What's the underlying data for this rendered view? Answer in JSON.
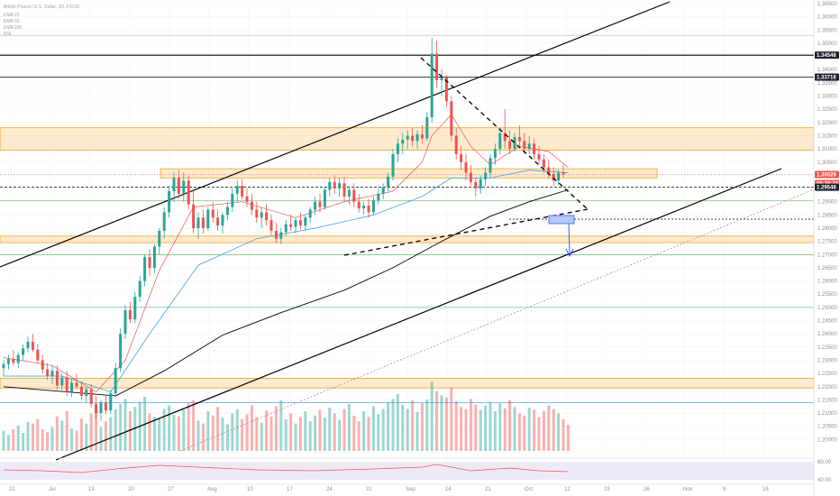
{
  "chart_data": {
    "type": "candlestick",
    "symbol_header": "British Pound / U.S. Dollar, 1D, FXCM",
    "indicator_labels": [
      "EMA 20",
      "EMA 50",
      "EMA 200",
      "RSI"
    ],
    "y_axis": {
      "min": 1.195,
      "max": 1.365,
      "tick_step": 0.005,
      "tick_decimals": 5
    },
    "price_labels": [
      {
        "value": 1.34548,
        "text": "1.34548",
        "bg": "#1e222d",
        "fg": "#ffffff",
        "line": "#000000",
        "line_style": "solid",
        "line_width": 1.2
      },
      {
        "value": 1.33718,
        "text": "1.33718",
        "bg": "#1e222d",
        "fg": "#ffffff",
        "line": "#000000",
        "line_style": "solid",
        "line_width": 0.8
      },
      {
        "value": 1.30029,
        "text": "1.30029",
        "bg": "#ef5350",
        "fg": "#ffffff",
        "line": "#ef5350",
        "line_style": "dotted",
        "line_width": 0.6
      },
      {
        "value": 1.2969,
        "text": "05:38:32",
        "bg": "#ef5350",
        "fg": "#ffffff",
        "line": "",
        "line_style": "none",
        "line_width": 0
      },
      {
        "value": 1.29548,
        "text": "1.29548",
        "bg": "#1e222d",
        "fg": "#ffffff",
        "line": "#000000",
        "line_style": "dashed",
        "line_width": 0.8
      }
    ],
    "x_axis_labels": [
      "21",
      "Jul",
      "13",
      "20",
      "27",
      "Aug",
      "10",
      "17",
      "24",
      "31",
      "Sep",
      "14",
      "21",
      "Oct",
      "12",
      "19",
      "26",
      "Nov",
      "9",
      "16"
    ],
    "rsi_y_labels": [
      "60.00",
      "40.00"
    ],
    "zones": [
      {
        "low": 1.3095,
        "high": 1.318
      },
      {
        "low": 1.299,
        "high": 1.3025
      },
      {
        "low": 1.2745,
        "high": 1.277
      },
      {
        "low": 1.2195,
        "high": 1.2232
      }
    ],
    "colors": {
      "up": "#26a69a",
      "down": "#ef5350",
      "zone_fill": "#fbd9a8",
      "zone_border": "#f5a623",
      "ema20": "#ef5350",
      "ema50": "#2196f3",
      "ema200": "#000000",
      "rsi": "#ef5350",
      "rsi_band": "#e6e1f5",
      "projection": "#2962ff",
      "hline_green": "#4caf50",
      "hline_teal": "#26a69a",
      "hline_blue": "#2196f3"
    },
    "candles": [
      {
        "o": 1.227,
        "h": 1.23,
        "l": 1.224,
        "c": 1.2285
      },
      {
        "o": 1.2285,
        "h": 1.232,
        "l": 1.2265,
        "c": 1.2305
      },
      {
        "o": 1.2305,
        "h": 1.234,
        "l": 1.228,
        "c": 1.229
      },
      {
        "o": 1.229,
        "h": 1.233,
        "l": 1.227,
        "c": 1.232
      },
      {
        "o": 1.232,
        "h": 1.236,
        "l": 1.23,
        "c": 1.2345
      },
      {
        "o": 1.2345,
        "h": 1.239,
        "l": 1.233,
        "c": 1.237
      },
      {
        "o": 1.237,
        "h": 1.24,
        "l": 1.233,
        "c": 1.234
      },
      {
        "o": 1.234,
        "h": 1.236,
        "l": 1.229,
        "c": 1.23
      },
      {
        "o": 1.23,
        "h": 1.232,
        "l": 1.225,
        "c": 1.2265
      },
      {
        "o": 1.2265,
        "h": 1.229,
        "l": 1.2225,
        "c": 1.224
      },
      {
        "o": 1.224,
        "h": 1.228,
        "l": 1.221,
        "c": 1.226
      },
      {
        "o": 1.226,
        "h": 1.228,
        "l": 1.219,
        "c": 1.2205
      },
      {
        "o": 1.2205,
        "h": 1.225,
        "l": 1.2185,
        "c": 1.2235
      },
      {
        "o": 1.2235,
        "h": 1.226,
        "l": 1.2165,
        "c": 1.218
      },
      {
        "o": 1.218,
        "h": 1.223,
        "l": 1.216,
        "c": 1.2215
      },
      {
        "o": 1.2215,
        "h": 1.225,
        "l": 1.219,
        "c": 1.22
      },
      {
        "o": 1.22,
        "h": 1.222,
        "l": 1.215,
        "c": 1.2165
      },
      {
        "o": 1.2165,
        "h": 1.22,
        "l": 1.214,
        "c": 1.219
      },
      {
        "o": 1.219,
        "h": 1.221,
        "l": 1.212,
        "c": 1.2135
      },
      {
        "o": 1.2135,
        "h": 1.2165,
        "l": 1.208,
        "c": 1.21
      },
      {
        "o": 1.21,
        "h": 1.215,
        "l": 1.207,
        "c": 1.214
      },
      {
        "o": 1.214,
        "h": 1.217,
        "l": 1.2095,
        "c": 1.211
      },
      {
        "o": 1.211,
        "h": 1.219,
        "l": 1.2095,
        "c": 1.2175
      },
      {
        "o": 1.2175,
        "h": 1.229,
        "l": 1.216,
        "c": 1.227
      },
      {
        "o": 1.227,
        "h": 1.242,
        "l": 1.2255,
        "c": 1.24
      },
      {
        "o": 1.24,
        "h": 1.251,
        "l": 1.238,
        "c": 1.249
      },
      {
        "o": 1.249,
        "h": 1.252,
        "l": 1.244,
        "c": 1.2455
      },
      {
        "o": 1.2455,
        "h": 1.256,
        "l": 1.244,
        "c": 1.254
      },
      {
        "o": 1.254,
        "h": 1.262,
        "l": 1.252,
        "c": 1.26
      },
      {
        "o": 1.26,
        "h": 1.27,
        "l": 1.258,
        "c": 1.269
      },
      {
        "o": 1.269,
        "h": 1.272,
        "l": 1.262,
        "c": 1.265
      },
      {
        "o": 1.265,
        "h": 1.274,
        "l": 1.263,
        "c": 1.273
      },
      {
        "o": 1.273,
        "h": 1.28,
        "l": 1.27,
        "c": 1.279
      },
      {
        "o": 1.279,
        "h": 1.288,
        "l": 1.276,
        "c": 1.286
      },
      {
        "o": 1.286,
        "h": 1.296,
        "l": 1.284,
        "c": 1.294
      },
      {
        "o": 1.294,
        "h": 1.301,
        "l": 1.29,
        "c": 1.299
      },
      {
        "o": 1.299,
        "h": 1.302,
        "l": 1.291,
        "c": 1.293
      },
      {
        "o": 1.293,
        "h": 1.301,
        "l": 1.29,
        "c": 1.298
      },
      {
        "o": 1.298,
        "h": 1.3,
        "l": 1.287,
        "c": 1.289
      },
      {
        "o": 1.289,
        "h": 1.294,
        "l": 1.278,
        "c": 1.28
      },
      {
        "o": 1.28,
        "h": 1.286,
        "l": 1.276,
        "c": 1.284
      },
      {
        "o": 1.284,
        "h": 1.287,
        "l": 1.278,
        "c": 1.28
      },
      {
        "o": 1.28,
        "h": 1.288,
        "l": 1.279,
        "c": 1.287
      },
      {
        "o": 1.287,
        "h": 1.29,
        "l": 1.282,
        "c": 1.284
      },
      {
        "o": 1.284,
        "h": 1.287,
        "l": 1.279,
        "c": 1.281
      },
      {
        "o": 1.281,
        "h": 1.286,
        "l": 1.278,
        "c": 1.285
      },
      {
        "o": 1.285,
        "h": 1.29,
        "l": 1.283,
        "c": 1.288
      },
      {
        "o": 1.288,
        "h": 1.295,
        "l": 1.286,
        "c": 1.293
      },
      {
        "o": 1.293,
        "h": 1.298,
        "l": 1.29,
        "c": 1.296
      },
      {
        "o": 1.296,
        "h": 1.2985,
        "l": 1.291,
        "c": 1.292
      },
      {
        "o": 1.292,
        "h": 1.295,
        "l": 1.288,
        "c": 1.29
      },
      {
        "o": 1.29,
        "h": 1.293,
        "l": 1.285,
        "c": 1.287
      },
      {
        "o": 1.287,
        "h": 1.29,
        "l": 1.282,
        "c": 1.284
      },
      {
        "o": 1.284,
        "h": 1.288,
        "l": 1.28,
        "c": 1.286
      },
      {
        "o": 1.286,
        "h": 1.289,
        "l": 1.281,
        "c": 1.283
      },
      {
        "o": 1.283,
        "h": 1.285,
        "l": 1.277,
        "c": 1.279
      },
      {
        "o": 1.279,
        "h": 1.282,
        "l": 1.2745,
        "c": 1.276
      },
      {
        "o": 1.276,
        "h": 1.28,
        "l": 1.274,
        "c": 1.2785
      },
      {
        "o": 1.2785,
        "h": 1.283,
        "l": 1.277,
        "c": 1.2815
      },
      {
        "o": 1.2815,
        "h": 1.285,
        "l": 1.279,
        "c": 1.2805
      },
      {
        "o": 1.2805,
        "h": 1.284,
        "l": 1.278,
        "c": 1.283
      },
      {
        "o": 1.283,
        "h": 1.286,
        "l": 1.2795,
        "c": 1.281
      },
      {
        "o": 1.281,
        "h": 1.285,
        "l": 1.279,
        "c": 1.284
      },
      {
        "o": 1.284,
        "h": 1.288,
        "l": 1.282,
        "c": 1.287
      },
      {
        "o": 1.287,
        "h": 1.292,
        "l": 1.285,
        "c": 1.29
      },
      {
        "o": 1.29,
        "h": 1.293,
        "l": 1.286,
        "c": 1.288
      },
      {
        "o": 1.288,
        "h": 1.296,
        "l": 1.287,
        "c": 1.2945
      },
      {
        "o": 1.2945,
        "h": 1.299,
        "l": 1.292,
        "c": 1.2975
      },
      {
        "o": 1.2975,
        "h": 1.3,
        "l": 1.293,
        "c": 1.295
      },
      {
        "o": 1.295,
        "h": 1.299,
        "l": 1.292,
        "c": 1.297
      },
      {
        "o": 1.297,
        "h": 1.2995,
        "l": 1.29,
        "c": 1.292
      },
      {
        "o": 1.292,
        "h": 1.296,
        "l": 1.289,
        "c": 1.2945
      },
      {
        "o": 1.2945,
        "h": 1.297,
        "l": 1.288,
        "c": 1.29
      },
      {
        "o": 1.29,
        "h": 1.293,
        "l": 1.286,
        "c": 1.2875
      },
      {
        "o": 1.2875,
        "h": 1.29,
        "l": 1.285,
        "c": 1.2885
      },
      {
        "o": 1.2885,
        "h": 1.291,
        "l": 1.284,
        "c": 1.286
      },
      {
        "o": 1.286,
        "h": 1.292,
        "l": 1.285,
        "c": 1.2905
      },
      {
        "o": 1.2905,
        "h": 1.295,
        "l": 1.289,
        "c": 1.293
      },
      {
        "o": 1.293,
        "h": 1.297,
        "l": 1.291,
        "c": 1.2955
      },
      {
        "o": 1.2955,
        "h": 1.301,
        "l": 1.294,
        "c": 1.2995
      },
      {
        "o": 1.2995,
        "h": 1.31,
        "l": 1.298,
        "c": 1.308
      },
      {
        "o": 1.308,
        "h": 1.314,
        "l": 1.305,
        "c": 1.312
      },
      {
        "o": 1.312,
        "h": 1.316,
        "l": 1.308,
        "c": 1.3135
      },
      {
        "o": 1.3135,
        "h": 1.317,
        "l": 1.31,
        "c": 1.315
      },
      {
        "o": 1.315,
        "h": 1.318,
        "l": 1.311,
        "c": 1.313
      },
      {
        "o": 1.313,
        "h": 1.317,
        "l": 1.31,
        "c": 1.3155
      },
      {
        "o": 1.3155,
        "h": 1.319,
        "l": 1.312,
        "c": 1.314
      },
      {
        "o": 1.314,
        "h": 1.324,
        "l": 1.313,
        "c": 1.322
      },
      {
        "o": 1.322,
        "h": 1.352,
        "l": 1.32,
        "c": 1.346
      },
      {
        "o": 1.346,
        "h": 1.351,
        "l": 1.333,
        "c": 1.336
      },
      {
        "o": 1.336,
        "h": 1.34,
        "l": 1.33,
        "c": 1.337
      },
      {
        "o": 1.337,
        "h": 1.338,
        "l": 1.326,
        "c": 1.328
      },
      {
        "o": 1.328,
        "h": 1.33,
        "l": 1.313,
        "c": 1.315
      },
      {
        "o": 1.315,
        "h": 1.318,
        "l": 1.306,
        "c": 1.308
      },
      {
        "o": 1.308,
        "h": 1.311,
        "l": 1.302,
        "c": 1.305
      },
      {
        "o": 1.305,
        "h": 1.308,
        "l": 1.298,
        "c": 1.301
      },
      {
        "o": 1.301,
        "h": 1.304,
        "l": 1.296,
        "c": 1.2975
      },
      {
        "o": 1.2975,
        "h": 1.299,
        "l": 1.292,
        "c": 1.295
      },
      {
        "o": 1.295,
        "h": 1.3,
        "l": 1.293,
        "c": 1.2985
      },
      {
        "o": 1.2985,
        "h": 1.303,
        "l": 1.296,
        "c": 1.301
      },
      {
        "o": 1.301,
        "h": 1.308,
        "l": 1.299,
        "c": 1.3065
      },
      {
        "o": 1.3065,
        "h": 1.312,
        "l": 1.304,
        "c": 1.31
      },
      {
        "o": 1.31,
        "h": 1.318,
        "l": 1.308,
        "c": 1.316
      },
      {
        "o": 1.316,
        "h": 1.325,
        "l": 1.31,
        "c": 1.313
      },
      {
        "o": 1.313,
        "h": 1.317,
        "l": 1.308,
        "c": 1.31
      },
      {
        "o": 1.31,
        "h": 1.316,
        "l": 1.309,
        "c": 1.3145
      },
      {
        "o": 1.3145,
        "h": 1.319,
        "l": 1.311,
        "c": 1.313
      },
      {
        "o": 1.313,
        "h": 1.316,
        "l": 1.308,
        "c": 1.31
      },
      {
        "o": 1.31,
        "h": 1.315,
        "l": 1.308,
        "c": 1.312
      },
      {
        "o": 1.312,
        "h": 1.314,
        "l": 1.306,
        "c": 1.308
      },
      {
        "o": 1.308,
        "h": 1.311,
        "l": 1.304,
        "c": 1.306
      },
      {
        "o": 1.306,
        "h": 1.308,
        "l": 1.301,
        "c": 1.303
      },
      {
        "o": 1.303,
        "h": 1.306,
        "l": 1.299,
        "c": 1.3005
      },
      {
        "o": 1.3005,
        "h": 1.303,
        "l": 1.296,
        "c": 1.298
      },
      {
        "o": 1.298,
        "h": 1.302,
        "l": 1.2965,
        "c": 1.301
      },
      {
        "o": 1.301,
        "h": 1.304,
        "l": 1.299,
        "c": 1.3003
      }
    ],
    "volume": [
      28,
      22,
      30,
      35,
      25,
      40,
      38,
      44,
      30,
      26,
      33,
      48,
      42,
      55,
      31,
      28,
      45,
      38,
      52,
      60,
      33,
      41,
      47,
      58,
      65,
      72,
      55,
      61,
      68,
      75,
      52,
      47,
      44,
      58,
      63,
      50,
      48,
      57,
      66,
      70,
      42,
      38,
      55,
      49,
      61,
      46,
      37,
      52,
      58,
      44,
      51,
      63,
      47,
      39,
      56,
      48,
      62,
      70,
      44,
      52,
      38,
      47,
      55,
      41,
      49,
      57,
      46,
      60,
      52,
      43,
      58,
      65,
      49,
      41,
      55,
      47,
      62,
      51,
      58,
      67,
      72,
      79,
      64,
      58,
      70,
      54,
      66,
      71,
      96,
      83,
      77,
      74,
      88,
      69,
      61,
      58,
      72,
      64,
      57,
      63,
      68,
      55,
      66,
      59,
      70,
      61,
      52,
      49,
      60,
      57,
      47,
      55,
      63,
      58,
      52,
      44,
      36
    ],
    "ema20": [
      [
        0,
        1.231
      ],
      [
        10,
        1.228
      ],
      [
        19,
        1.218
      ],
      [
        25,
        1.23
      ],
      [
        32,
        1.264
      ],
      [
        39,
        1.288
      ],
      [
        49,
        1.29
      ],
      [
        60,
        1.284
      ],
      [
        70,
        1.29
      ],
      [
        80,
        1.294
      ],
      [
        86,
        1.305
      ],
      [
        88,
        1.315
      ],
      [
        92,
        1.323
      ],
      [
        96,
        1.311
      ],
      [
        100,
        1.304
      ],
      [
        106,
        1.311
      ],
      [
        112,
        1.309
      ],
      [
        116,
        1.303
      ]
    ],
    "ema50": [
      [
        0,
        1.224
      ],
      [
        12,
        1.224
      ],
      [
        22,
        1.218
      ],
      [
        30,
        1.24
      ],
      [
        40,
        1.266
      ],
      [
        52,
        1.276
      ],
      [
        64,
        1.28
      ],
      [
        76,
        1.285
      ],
      [
        86,
        1.292
      ],
      [
        92,
        1.299
      ],
      [
        100,
        1.299
      ],
      [
        108,
        1.302
      ],
      [
        116,
        1.301
      ]
    ],
    "ema200": [
      [
        0,
        1.22
      ],
      [
        23,
        1.2165
      ],
      [
        33,
        1.226
      ],
      [
        45,
        1.2395
      ],
      [
        57,
        1.248
      ],
      [
        70,
        1.2565
      ],
      [
        80,
        1.265
      ],
      [
        90,
        1.275
      ],
      [
        100,
        1.2845
      ],
      [
        108,
        1.29
      ],
      [
        116,
        1.2945
      ]
    ],
    "rsi": [
      [
        0,
        52
      ],
      [
        8,
        50
      ],
      [
        16,
        46
      ],
      [
        24,
        55
      ],
      [
        32,
        62
      ],
      [
        40,
        58
      ],
      [
        52,
        52
      ],
      [
        64,
        50
      ],
      [
        76,
        54
      ],
      [
        86,
        58
      ],
      [
        89,
        64
      ],
      [
        96,
        50
      ],
      [
        104,
        56
      ],
      [
        110,
        50
      ],
      [
        116,
        48
      ]
    ],
    "volume_scale": 100
  }
}
